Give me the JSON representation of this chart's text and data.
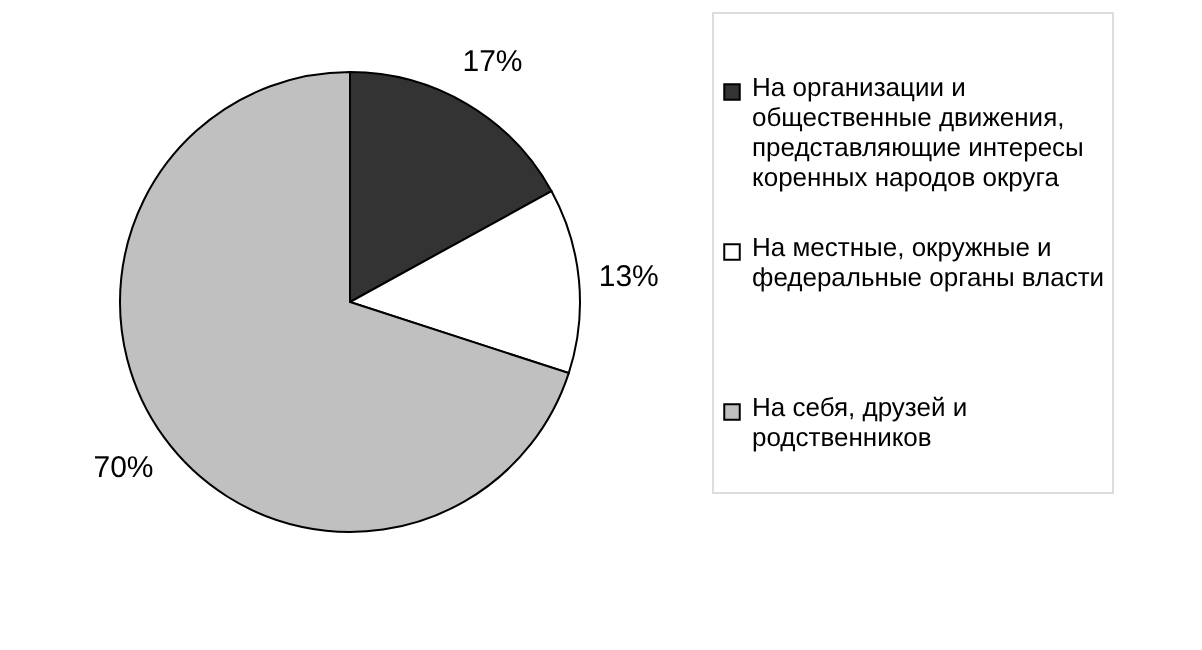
{
  "chart_data": {
    "type": "pie",
    "categories": [
      "На организации и общественные движения, представляющие интересы коренных народов округа",
      "На местные, окружные и федеральные органы власти",
      "На себя, друзей и родственников"
    ],
    "values": [
      17,
      13,
      70
    ],
    "colors": [
      "#333333",
      "#ffffff",
      "#c0c0c0"
    ],
    "value_labels": [
      "17%",
      "13%",
      "70%"
    ],
    "legend": "right"
  }
}
